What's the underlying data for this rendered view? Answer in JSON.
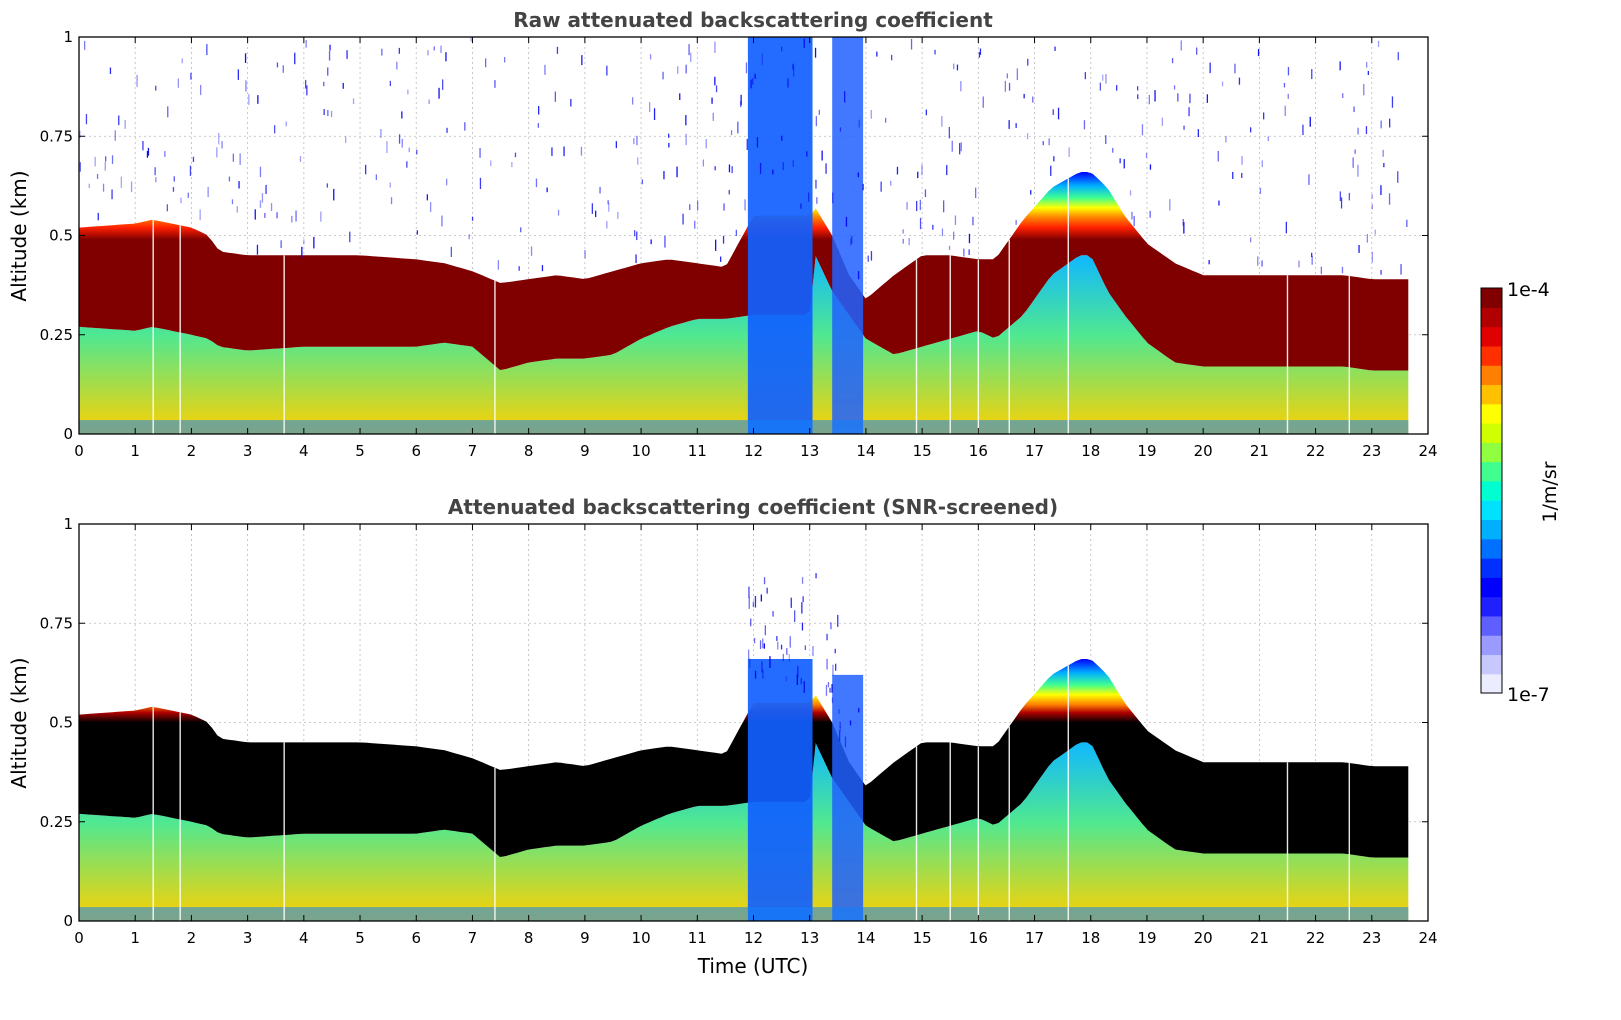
{
  "chart_data": [
    {
      "type": "heatmap",
      "title": "Raw attenuated backscattering coefficient",
      "xlabel": "",
      "ylabel": "Altitude (km)",
      "xlim": [
        0,
        24
      ],
      "ylim": [
        0,
        1
      ],
      "x_ticks": [
        "0",
        "1",
        "2",
        "3",
        "4",
        "5",
        "6",
        "7",
        "8",
        "9",
        "10",
        "11",
        "12",
        "13",
        "14",
        "15",
        "16",
        "17",
        "18",
        "19",
        "20",
        "21",
        "22",
        "23",
        "24"
      ],
      "y_ticks": [
        "0",
        "0.25",
        "0.5",
        "0.75",
        "1"
      ],
      "grid": true,
      "data_end_time": 23.65,
      "screened": false,
      "layer_profile": {
        "time": [
          0,
          1,
          1.3,
          2,
          2.3,
          2.5,
          3,
          4,
          5,
          6,
          6.5,
          7,
          7.5,
          8,
          8.5,
          9,
          9.5,
          10,
          10.5,
          11,
          11.5,
          12,
          12.5,
          13,
          13.1,
          13.4,
          13.7,
          14,
          14.5,
          15,
          15.5,
          16,
          16.3,
          16.8,
          17.3,
          17.8,
          18,
          18.3,
          18.6,
          19,
          19.5,
          20,
          20.5,
          21,
          21.5,
          22,
          22.5,
          23,
          23.65
        ],
        "top_km": [
          0.52,
          0.53,
          0.54,
          0.52,
          0.5,
          0.46,
          0.45,
          0.45,
          0.45,
          0.44,
          0.43,
          0.41,
          0.38,
          0.39,
          0.4,
          0.39,
          0.41,
          0.43,
          0.44,
          0.43,
          0.42,
          0.55,
          0.55,
          0.55,
          0.57,
          0.5,
          0.4,
          0.34,
          0.4,
          0.45,
          0.45,
          0.44,
          0.44,
          0.54,
          0.62,
          0.66,
          0.66,
          0.62,
          0.55,
          0.48,
          0.43,
          0.4,
          0.4,
          0.4,
          0.4,
          0.4,
          0.4,
          0.39,
          0.39
        ],
        "base_km": [
          0.27,
          0.26,
          0.27,
          0.25,
          0.24,
          0.22,
          0.21,
          0.22,
          0.22,
          0.22,
          0.23,
          0.22,
          0.16,
          0.18,
          0.19,
          0.19,
          0.2,
          0.24,
          0.27,
          0.29,
          0.29,
          0.3,
          0.3,
          0.3,
          0.45,
          0.36,
          0.3,
          0.24,
          0.2,
          0.22,
          0.24,
          0.26,
          0.24,
          0.3,
          0.4,
          0.45,
          0.45,
          0.36,
          0.3,
          0.23,
          0.18,
          0.17,
          0.17,
          0.17,
          0.17,
          0.17,
          0.17,
          0.16,
          0.16
        ]
      }
    },
    {
      "type": "heatmap",
      "title": "Attenuated backscattering coefficient (SNR-screened)",
      "xlabel": "Time (UTC)",
      "ylabel": "Altitude (km)",
      "xlim": [
        0,
        24
      ],
      "ylim": [
        0,
        1
      ],
      "x_ticks": [
        "0",
        "1",
        "2",
        "3",
        "4",
        "5",
        "6",
        "7",
        "8",
        "9",
        "10",
        "11",
        "12",
        "13",
        "14",
        "15",
        "16",
        "17",
        "18",
        "19",
        "20",
        "21",
        "22",
        "23",
        "24"
      ],
      "y_ticks": [
        "0",
        "0.25",
        "0.5",
        "0.75",
        "1"
      ],
      "grid": true,
      "data_end_time": 23.65,
      "screened": true,
      "saturated_color": "#000000"
    }
  ],
  "colorbar": {
    "label": "1/m/sr",
    "max_label": "1e-4",
    "min_label": "1e-7",
    "scale": "log",
    "range": [
      1e-07,
      0.0001
    ],
    "colors": [
      "#ececff",
      "#c8c8ff",
      "#9a9aff",
      "#5f5fff",
      "#2020ff",
      "#0000ff",
      "#0030ff",
      "#0070ff",
      "#00b0ff",
      "#00e0ff",
      "#00ffd0",
      "#40ff90",
      "#90ff40",
      "#d0ff00",
      "#ffff00",
      "#ffc000",
      "#ff8000",
      "#ff3000",
      "#e00000",
      "#b00000",
      "#800000"
    ]
  },
  "colors": {
    "background": "#ffffff",
    "grid": "#bbbbbb",
    "title": "#444444",
    "saturated": "#000000",
    "dropout": "#ffffff"
  }
}
